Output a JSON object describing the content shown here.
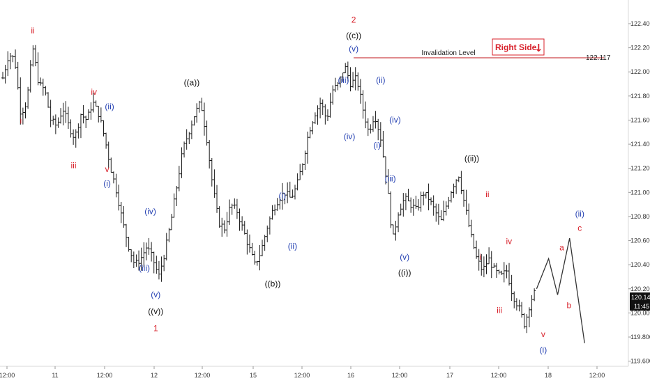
{
  "chart_data": {
    "type": "bar",
    "subtype": "ohlc",
    "title": "",
    "xlabel": "",
    "ylabel": "",
    "ylim": [
      119.5,
      122.5
    ],
    "y_ticks": [
      "122.400",
      "122.200",
      "122.000",
      "121.800",
      "121.600",
      "121.400",
      "121.200",
      "121.000",
      "120.800",
      "120.600",
      "120.400",
      "120.200",
      "120.000",
      "119.800",
      "119.600"
    ],
    "x_ticks": [
      "12:00",
      "11",
      "12:00",
      "12",
      "12:00",
      "15",
      "12:00",
      "16",
      "12:00",
      "17",
      "12:00",
      "18",
      "12:00"
    ],
    "x_range": [
      0,
      100
    ],
    "price_path": [
      [
        0,
        121.95
      ],
      [
        1,
        122.15
      ],
      [
        2,
        122.1
      ],
      [
        3,
        121.65
      ],
      [
        4,
        121.75
      ],
      [
        5,
        122.2
      ],
      [
        6,
        121.9
      ],
      [
        7,
        121.85
      ],
      [
        8,
        121.6
      ],
      [
        9,
        121.55
      ],
      [
        10,
        121.7
      ],
      [
        11,
        121.55
      ],
      [
        12,
        121.45
      ],
      [
        13,
        121.65
      ],
      [
        14,
        121.6
      ],
      [
        15,
        121.75
      ],
      [
        16,
        121.65
      ],
      [
        17,
        121.45
      ],
      [
        18,
        121.2
      ],
      [
        19,
        121.0
      ],
      [
        20,
        120.75
      ],
      [
        21,
        120.55
      ],
      [
        22,
        120.4
      ],
      [
        23,
        120.45
      ],
      [
        24,
        120.55
      ],
      [
        25,
        120.45
      ],
      [
        26,
        120.3
      ],
      [
        27,
        120.5
      ],
      [
        28,
        120.75
      ],
      [
        29,
        121.05
      ],
      [
        30,
        121.35
      ],
      [
        31,
        121.5
      ],
      [
        32,
        121.65
      ],
      [
        33,
        121.75
      ],
      [
        34,
        121.45
      ],
      [
        35,
        121.05
      ],
      [
        36,
        120.75
      ],
      [
        37,
        120.7
      ],
      [
        38,
        120.9
      ],
      [
        39,
        120.85
      ],
      [
        40,
        120.7
      ],
      [
        41,
        120.55
      ],
      [
        42,
        120.4
      ],
      [
        43,
        120.5
      ],
      [
        44,
        120.7
      ],
      [
        45,
        120.85
      ],
      [
        46,
        120.95
      ],
      [
        47,
        121.0
      ],
      [
        48,
        120.95
      ],
      [
        49,
        121.05
      ],
      [
        50,
        121.25
      ],
      [
        51,
        121.5
      ],
      [
        52,
        121.65
      ],
      [
        53,
        121.75
      ],
      [
        54,
        121.6
      ],
      [
        55,
        121.85
      ],
      [
        56,
        121.9
      ],
      [
        57,
        122.05
      ],
      [
        58,
        121.9
      ],
      [
        59,
        121.95
      ],
      [
        60,
        121.7
      ],
      [
        61,
        121.5
      ],
      [
        62,
        121.65
      ],
      [
        63,
        121.45
      ],
      [
        64,
        121.1
      ],
      [
        65,
        120.6
      ],
      [
        66,
        120.85
      ],
      [
        67,
        120.95
      ],
      [
        68,
        120.9
      ],
      [
        69,
        120.85
      ],
      [
        70,
        121.0
      ],
      [
        71,
        120.95
      ],
      [
        72,
        120.85
      ],
      [
        73,
        120.75
      ],
      [
        74,
        120.9
      ],
      [
        75,
        121.05
      ],
      [
        76,
        121.15
      ],
      [
        77,
        120.9
      ],
      [
        78,
        120.65
      ],
      [
        79,
        120.45
      ],
      [
        80,
        120.35
      ],
      [
        81,
        120.45
      ],
      [
        82,
        120.35
      ],
      [
        83,
        120.3
      ],
      [
        84,
        120.35
      ],
      [
        85,
        120.15
      ],
      [
        86,
        120.05
      ],
      [
        87,
        119.9
      ],
      [
        88,
        120.1
      ],
      [
        89,
        120.2
      ]
    ],
    "projection": [
      [
        89,
        120.2
      ],
      [
        91,
        120.45
      ],
      [
        92.5,
        120.15
      ],
      [
        94.5,
        120.62
      ],
      [
        97,
        119.75
      ]
    ],
    "invalidation": {
      "label": "Invalidation Level",
      "value": "122.117",
      "price": 122.117,
      "x_start": 58.5,
      "color": "#c0151b"
    },
    "current_price": {
      "value": "120.145",
      "price": 120.145,
      "time": "11:45"
    },
    "badge": {
      "label": "Right Side",
      "arrow": "↓"
    },
    "colors": {
      "red": "#d8202a",
      "blue": "#2541b2",
      "black": "#111111",
      "bars": "#1a1a1a"
    },
    "wave_labels": [
      {
        "text": "ii",
        "x": 5.0,
        "price": 122.32,
        "color": "red"
      },
      {
        "text": "i",
        "x": 3.0,
        "price": 121.57,
        "color": "red"
      },
      {
        "text": "iv",
        "x": 15.2,
        "price": 121.81,
        "color": "red"
      },
      {
        "text": "iii",
        "x": 11.8,
        "price": 121.2,
        "color": "red"
      },
      {
        "text": "(ii)",
        "x": 17.8,
        "price": 121.69,
        "color": "blue"
      },
      {
        "text": "v",
        "x": 17.4,
        "price": 121.17,
        "color": "red"
      },
      {
        "text": "(i)",
        "x": 17.4,
        "price": 121.05,
        "color": "blue"
      },
      {
        "text": "(iv)",
        "x": 24.6,
        "price": 120.82,
        "color": "blue"
      },
      {
        "text": "(iii)",
        "x": 23.6,
        "price": 120.35,
        "color": "blue"
      },
      {
        "text": "(v)",
        "x": 25.5,
        "price": 120.13,
        "color": "blue"
      },
      {
        "text": "((v))",
        "x": 25.5,
        "price": 119.99,
        "color": "black"
      },
      {
        "text": "1",
        "x": 25.5,
        "price": 119.85,
        "color": "red"
      },
      {
        "text": "((a))",
        "x": 31.5,
        "price": 121.89,
        "color": "black"
      },
      {
        "text": "(i)",
        "x": 46.6,
        "price": 120.95,
        "color": "blue"
      },
      {
        "text": "(ii)",
        "x": 48.3,
        "price": 120.53,
        "color": "blue"
      },
      {
        "text": "((b))",
        "x": 45.0,
        "price": 120.22,
        "color": "black"
      },
      {
        "text": "2",
        "x": 58.5,
        "price": 122.41,
        "color": "red"
      },
      {
        "text": "((c))",
        "x": 58.5,
        "price": 122.28,
        "color": "black"
      },
      {
        "text": "(v)",
        "x": 58.5,
        "price": 122.17,
        "color": "blue"
      },
      {
        "text": "(iii)",
        "x": 56.8,
        "price": 121.91,
        "color": "blue"
      },
      {
        "text": "(iv)",
        "x": 57.8,
        "price": 121.44,
        "color": "blue"
      },
      {
        "text": "(ii)",
        "x": 63.0,
        "price": 121.91,
        "color": "blue"
      },
      {
        "text": "(i)",
        "x": 62.4,
        "price": 121.37,
        "color": "blue"
      },
      {
        "text": "(iv)",
        "x": 65.4,
        "price": 121.58,
        "color": "blue"
      },
      {
        "text": "(iii)",
        "x": 64.6,
        "price": 121.09,
        "color": "blue"
      },
      {
        "text": "(v)",
        "x": 67.0,
        "price": 120.44,
        "color": "blue"
      },
      {
        "text": "((i))",
        "x": 67.0,
        "price": 120.31,
        "color": "black"
      },
      {
        "text": "((ii))",
        "x": 78.2,
        "price": 121.26,
        "color": "black"
      },
      {
        "text": "ii",
        "x": 80.8,
        "price": 120.96,
        "color": "red"
      },
      {
        "text": "i",
        "x": 79.6,
        "price": 120.44,
        "color": "red"
      },
      {
        "text": "iv",
        "x": 84.4,
        "price": 120.57,
        "color": "red"
      },
      {
        "text": "iii",
        "x": 82.8,
        "price": 120.0,
        "color": "red"
      },
      {
        "text": "v",
        "x": 90.1,
        "price": 119.8,
        "color": "red"
      },
      {
        "text": "(i)",
        "x": 90.1,
        "price": 119.67,
        "color": "blue"
      },
      {
        "text": "a",
        "x": 93.2,
        "price": 120.52,
        "color": "red"
      },
      {
        "text": "b",
        "x": 94.4,
        "price": 120.04,
        "color": "red"
      },
      {
        "text": "c",
        "x": 96.2,
        "price": 120.68,
        "color": "red"
      },
      {
        "text": "(ii)",
        "x": 96.2,
        "price": 120.8,
        "color": "blue"
      }
    ]
  }
}
